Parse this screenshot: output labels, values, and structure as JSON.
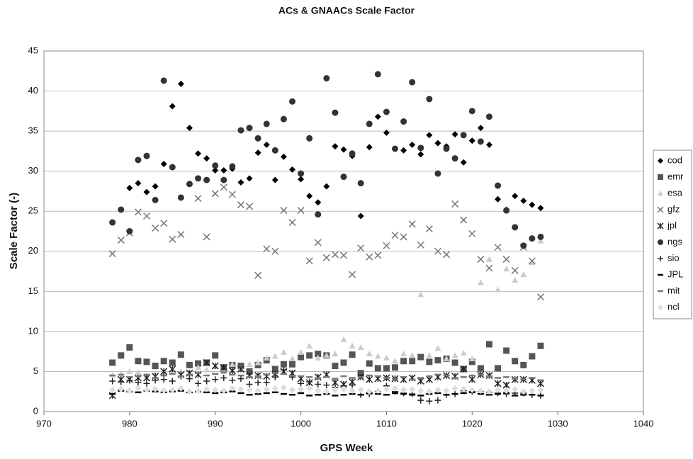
{
  "chart_data": {
    "type": "scatter",
    "title": "ACs & GNAACs Scale Factor",
    "x_label": "GPS Week",
    "y_label": "Scale Factor (-)",
    "xlim": [
      970,
      1040
    ],
    "xticks": [
      970,
      980,
      990,
      1000,
      1010,
      1020,
      1030,
      1040
    ],
    "ylim": [
      0,
      45
    ],
    "yticks": [
      0,
      5,
      10,
      15,
      20,
      25,
      30,
      35,
      40,
      45
    ],
    "grid": true,
    "legend": "right",
    "x": [
      978,
      979,
      980,
      981,
      982,
      983,
      984,
      985,
      986,
      987,
      988,
      989,
      990,
      991,
      992,
      993,
      994,
      995,
      996,
      997,
      998,
      999,
      1000,
      1001,
      1002,
      1003,
      1004,
      1005,
      1006,
      1007,
      1008,
      1009,
      1010,
      1011,
      1012,
      1013,
      1014,
      1015,
      1016,
      1017,
      1018,
      1019,
      1020,
      1021,
      1022,
      1023,
      1024,
      1025,
      1026,
      1027,
      1028
    ],
    "series": [
      {
        "name": "cod",
        "color": "#000000",
        "marker": "diamond",
        "values": [
          null,
          null,
          27.9,
          28.5,
          27.4,
          28.1,
          30.9,
          38.1,
          40.9,
          35.4,
          32.2,
          31.6,
          30.1,
          30.1,
          30.3,
          28.6,
          29.1,
          32.3,
          33.3,
          28.9,
          31.8,
          30.2,
          29.0,
          26.9,
          26.1,
          28.1,
          33.1,
          32.7,
          31.9,
          24.4,
          33.0,
          36.8,
          34.8,
          32.8,
          32.6,
          33.3,
          32.1,
          34.5,
          33.5,
          33.1,
          34.6,
          31.1,
          33.8,
          35.4,
          33.3,
          26.5,
          25.2,
          26.9,
          26.3,
          25.8,
          25.4
        ]
      },
      {
        "name": "emr",
        "color": "#555555",
        "marker": "square",
        "values": [
          6.1,
          7.0,
          8.0,
          6.3,
          6.2,
          5.7,
          6.3,
          6.1,
          7.1,
          5.8,
          6.0,
          6.1,
          7.0,
          5.5,
          5.8,
          5.7,
          5.0,
          5.8,
          6.4,
          5.3,
          5.9,
          5.9,
          6.8,
          7.0,
          7.2,
          7.0,
          5.7,
          6.1,
          7.1,
          4.8,
          6.0,
          5.4,
          5.4,
          5.5,
          6.3,
          6.3,
          6.8,
          6.2,
          6.4,
          6.6,
          6.1,
          5.3,
          6.2,
          5.4,
          8.4,
          5.4,
          7.6,
          6.3,
          5.8,
          6.9,
          8.2
        ]
      },
      {
        "name": "esa",
        "color": "#cccccc",
        "marker": "triangle",
        "values": [
          4.6,
          4.7,
          5.0,
          4.9,
          4.5,
          4.8,
          4.9,
          5.2,
          5.0,
          4.7,
          5.5,
          5.2,
          5.6,
          5.0,
          5.9,
          5.4,
          5.9,
          6.1,
          6.7,
          6.9,
          7.4,
          6.6,
          7.4,
          8.2,
          6.7,
          7.0,
          7.2,
          9.0,
          8.2,
          8.0,
          7.2,
          6.9,
          6.7,
          6.3,
          7.2,
          7.0,
          14.6,
          7.0,
          7.9,
          6.6,
          7.0,
          7.3,
          6.6,
          16.1,
          19.0,
          15.2,
          17.8,
          16.4,
          17.1,
          18.6,
          21.3
        ]
      },
      {
        "name": "gfz",
        "color": "#777777",
        "marker": "x",
        "values": [
          19.7,
          21.4,
          22.3,
          24.9,
          24.4,
          22.9,
          23.5,
          21.5,
          22.1,
          null,
          26.6,
          21.8,
          27.2,
          28.0,
          27.1,
          25.8,
          25.6,
          17.0,
          20.3,
          20.0,
          25.1,
          23.6,
          25.1,
          18.8,
          21.1,
          19.2,
          19.6,
          19.5,
          17.1,
          20.4,
          19.3,
          19.5,
          20.7,
          22.0,
          21.8,
          23.4,
          20.8,
          22.8,
          20.0,
          19.6,
          25.9,
          23.9,
          22.2,
          19.0,
          17.9,
          20.5,
          19.0,
          17.6,
          20.5,
          18.8,
          14.3
        ]
      },
      {
        "name": "jpl",
        "color": "#222222",
        "marker": "asterisk",
        "values": [
          2.0,
          4.0,
          4.0,
          4.2,
          4.2,
          4.4,
          5.0,
          5.3,
          4.6,
          4.8,
          4.6,
          6.1,
          5.7,
          5.5,
          5.1,
          5.3,
          4.5,
          4.5,
          4.4,
          4.7,
          5.0,
          4.8,
          4.1,
          3.6,
          4.3,
          4.6,
          3.6,
          3.4,
          3.7,
          4.3,
          4.0,
          4.1,
          4.2,
          4.1,
          4.0,
          4.2,
          3.8,
          4.0,
          4.3,
          4.5,
          4.4,
          5.3,
          4.0,
          4.6,
          4.5,
          3.5,
          3.3,
          4.0,
          4.0,
          3.9,
          3.5
        ]
      },
      {
        "name": "ngs",
        "color": "#333333",
        "marker": "circle",
        "values": [
          23.6,
          25.2,
          22.5,
          31.4,
          31.9,
          26.4,
          41.3,
          30.5,
          26.7,
          28.4,
          29.1,
          28.9,
          30.7,
          28.9,
          30.6,
          35.1,
          35.4,
          34.1,
          35.9,
          32.6,
          36.5,
          38.7,
          29.7,
          34.1,
          24.6,
          41.6,
          37.3,
          29.3,
          32.2,
          28.5,
          35.9,
          42.1,
          37.4,
          32.8,
          36.2,
          41.1,
          32.9,
          39.0,
          29.7,
          32.8,
          31.6,
          34.5,
          37.5,
          33.7,
          36.8,
          28.2,
          25.1,
          23.0,
          20.7,
          21.6,
          21.8
        ]
      },
      {
        "name": "sio",
        "color": "#222222",
        "marker": "plus",
        "values": [
          3.8,
          3.7,
          3.9,
          3.6,
          3.5,
          3.9,
          4.0,
          3.8,
          4.4,
          4.1,
          3.5,
          3.8,
          4.0,
          4.2,
          3.9,
          4.1,
          3.4,
          3.6,
          3.6,
          4.3,
          5.2,
          4.3,
          3.5,
          3.7,
          3.4,
          3.3,
          3.0,
          3.2,
          3.3,
          2.1,
          2.2,
          2.5,
          3.2,
          2.5,
          2.3,
          2.2,
          1.4,
          1.3,
          1.4,
          2.1,
          2.2,
          2.6,
          2.5,
          2.5,
          2.4,
          2.3,
          2.2,
          2.3,
          2.3,
          2.1,
          2.0
        ]
      },
      {
        "name": "JPL",
        "color": "#000000",
        "marker": "dash",
        "values": [
          2.2,
          2.6,
          2.5,
          2.4,
          2.6,
          2.5,
          2.4,
          2.5,
          2.6,
          2.4,
          2.5,
          2.4,
          2.3,
          2.4,
          2.5,
          2.3,
          2.1,
          2.2,
          2.3,
          2.4,
          2.2,
          2.1,
          2.3,
          2.0,
          2.1,
          2.2,
          2.0,
          2.1,
          2.2,
          2.1,
          2.3,
          2.2,
          2.1,
          2.3,
          2.2,
          2.1,
          2.0,
          2.2,
          2.3,
          2.1,
          2.2,
          2.3,
          2.4,
          2.2,
          2.1,
          2.2,
          2.3,
          2.0,
          2.1,
          2.1,
          2.0
        ]
      },
      {
        "name": "mit",
        "color": "#777777",
        "marker": "dash",
        "values": [
          4.5,
          4.6,
          4.3,
          4.4,
          4.6,
          4.2,
          4.5,
          4.7,
          4.4,
          4.6,
          4.8,
          4.5,
          4.7,
          4.9,
          4.6,
          4.5,
          4.3,
          4.4,
          4.6,
          4.8,
          4.7,
          4.5,
          4.4,
          4.3,
          4.2,
          4.3,
          4.1,
          4.4,
          4.2,
          4.3,
          4.5,
          4.4,
          4.2,
          4.1,
          4.3,
          4.0,
          4.2,
          4.4,
          4.6,
          4.5,
          4.2,
          4.3,
          4.5,
          4.6,
          4.4,
          4.2,
          4.3,
          4.1,
          4.0,
          4.2,
          3.9
        ]
      },
      {
        "name": "ncl",
        "color": "#dddddd",
        "marker": "diamond",
        "values": [
          2.7,
          2.8,
          2.6,
          2.9,
          2.7,
          2.8,
          2.6,
          2.7,
          2.9,
          2.5,
          2.6,
          2.8,
          2.7,
          2.6,
          2.9,
          2.8,
          2.7,
          2.6,
          2.8,
          2.9,
          3.0,
          2.7,
          2.8,
          2.9,
          2.6,
          2.5,
          2.7,
          2.8,
          2.6,
          2.7,
          2.5,
          2.6,
          2.8,
          2.9,
          2.7,
          2.8,
          2.6,
          2.5,
          2.7,
          2.6,
          2.9,
          2.8,
          2.7,
          2.6,
          2.5,
          2.7,
          2.6,
          2.8,
          2.5,
          2.6,
          2.7
        ]
      }
    ]
  }
}
